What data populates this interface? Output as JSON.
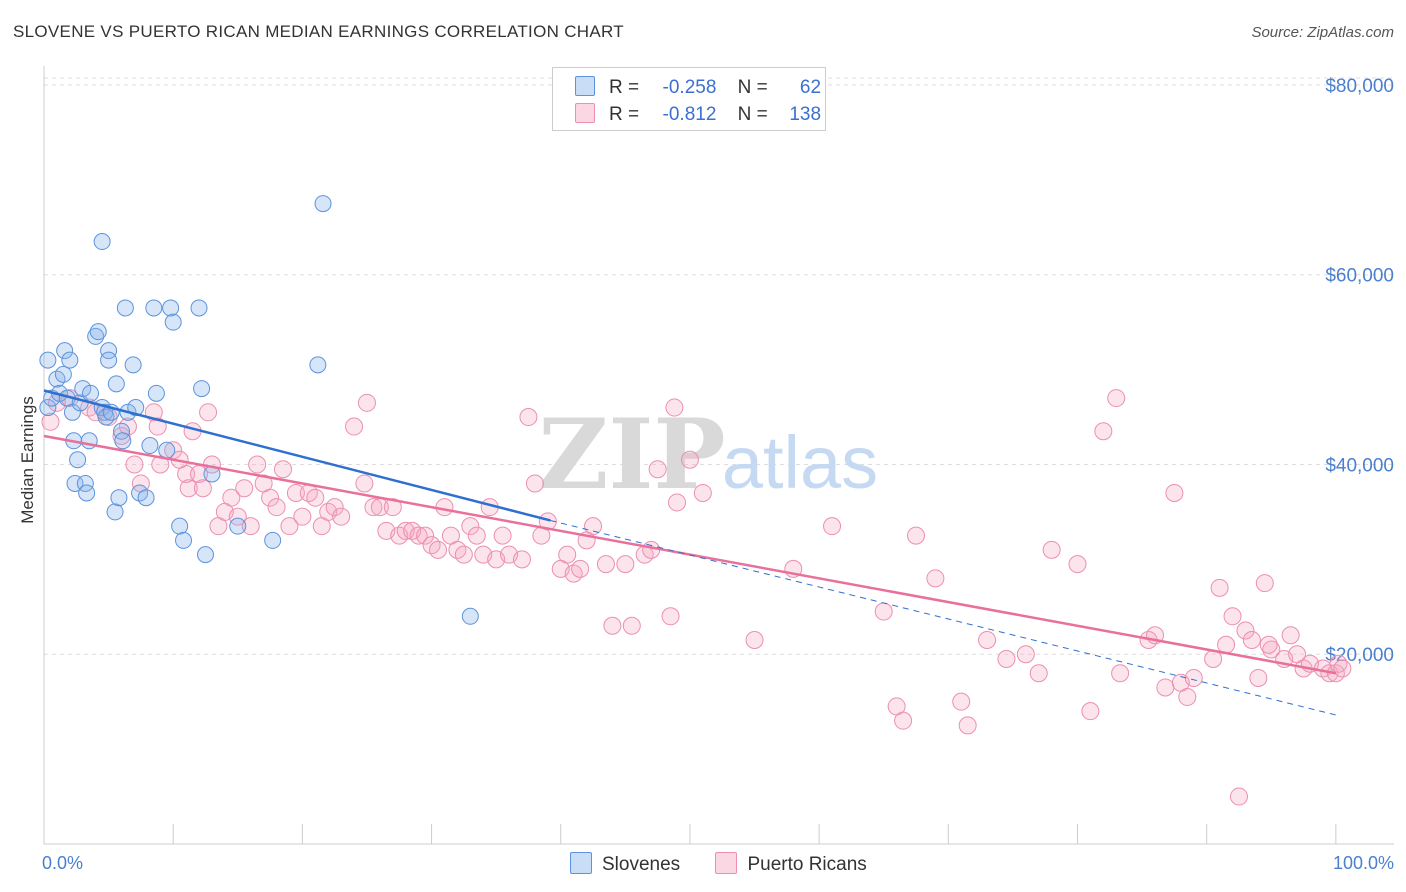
{
  "header": {
    "title": "SLOVENE VS PUERTO RICAN MEDIAN EARNINGS CORRELATION CHART",
    "source": "Source: ZipAtlas.com"
  },
  "watermark": {
    "zip": "ZIP",
    "atlas": "atlas"
  },
  "legend": {
    "rows": [
      {
        "r_label": "R =",
        "r_value": "-0.258",
        "n_label": "N =",
        "n_value": "62",
        "color": "#8ab4ea"
      },
      {
        "r_label": "R =",
        "r_value": "-0.812",
        "n_label": "N =",
        "n_value": "138",
        "color": "#f4a6bf"
      }
    ]
  },
  "bottom_legend": [
    {
      "label": "Slovenes",
      "color": "#8ab4ea"
    },
    {
      "label": "Puerto Ricans",
      "color": "#f4a6bf"
    }
  ],
  "colors": {
    "blue_fill": "rgba(138,180,234,0.35)",
    "blue_stroke": "#5d93dc",
    "blue_line": "#2f6fd0",
    "pink_fill": "rgba(244,166,191,0.3)",
    "pink_stroke": "#ec8fb0",
    "pink_line": "#e8709a",
    "grid": "#dddddd",
    "tick_text": "#4a7fd0"
  },
  "chart_data": {
    "type": "scatter",
    "title": "SLOVENE VS PUERTO RICAN MEDIAN EARNINGS CORRELATION CHART",
    "xlabel": "",
    "ylabel": "Median Earnings",
    "xlim": [
      0,
      104.5
    ],
    "ylim": [
      0,
      82000
    ],
    "x_tick_labels": [
      "0.0%",
      "100.0%"
    ],
    "y_ticks": [
      20000,
      40000,
      60000,
      80000
    ],
    "y_tick_labels": [
      "$20,000",
      "$40,000",
      "$60,000",
      "$80,000"
    ],
    "grid": true,
    "legend_position": "top-center",
    "series": [
      {
        "name": "Slovenes",
        "r": -0.258,
        "n": 62,
        "trend": {
          "x0": 0,
          "y0": 47800,
          "x1": 39.2,
          "y1": 34100
        },
        "points": [
          [
            0.3,
            51000
          ],
          [
            0.3,
            46000
          ],
          [
            0.6,
            47000
          ],
          [
            1.0,
            49000
          ],
          [
            1.2,
            47500
          ],
          [
            1.5,
            49500
          ],
          [
            1.6,
            52000
          ],
          [
            1.8,
            47000
          ],
          [
            2.0,
            51000
          ],
          [
            2.2,
            45500
          ],
          [
            2.3,
            42500
          ],
          [
            2.4,
            38000
          ],
          [
            2.6,
            40500
          ],
          [
            2.8,
            46500
          ],
          [
            3.0,
            48000
          ],
          [
            3.2,
            38000
          ],
          [
            3.3,
            37000
          ],
          [
            3.5,
            42500
          ],
          [
            3.6,
            47500
          ],
          [
            4.0,
            53500
          ],
          [
            4.2,
            54000
          ],
          [
            4.5,
            46000
          ],
          [
            4.7,
            45500
          ],
          [
            4.5,
            63500
          ],
          [
            4.8,
            45000
          ],
          [
            5.0,
            52000
          ],
          [
            5.0,
            51000
          ],
          [
            5.2,
            45500
          ],
          [
            5.5,
            35000
          ],
          [
            5.6,
            48500
          ],
          [
            5.8,
            36500
          ],
          [
            6.0,
            43500
          ],
          [
            6.1,
            42500
          ],
          [
            6.3,
            56500
          ],
          [
            6.5,
            45500
          ],
          [
            6.9,
            50500
          ],
          [
            7.1,
            46000
          ],
          [
            7.4,
            37000
          ],
          [
            7.9,
            36500
          ],
          [
            8.2,
            42000
          ],
          [
            8.5,
            56500
          ],
          [
            8.7,
            47500
          ],
          [
            9.5,
            41500
          ],
          [
            9.8,
            56500
          ],
          [
            10.0,
            55000
          ],
          [
            10.5,
            33500
          ],
          [
            10.8,
            32000
          ],
          [
            12.0,
            56500
          ],
          [
            12.2,
            48000
          ],
          [
            12.5,
            30500
          ],
          [
            13.0,
            39000
          ],
          [
            15.0,
            33500
          ],
          [
            17.7,
            32000
          ],
          [
            21.2,
            50500
          ],
          [
            21.6,
            67500
          ],
          [
            33.0,
            24000
          ]
        ]
      },
      {
        "name": "Puerto Ricans",
        "r": -0.812,
        "n": 138,
        "trend": {
          "x0": 0,
          "y0": 43000,
          "x1": 100,
          "y1": 18000
        },
        "points": [
          [
            0.5,
            44500
          ],
          [
            1.0,
            46500
          ],
          [
            2.0,
            47000
          ],
          [
            3.5,
            46000
          ],
          [
            4.0,
            45500
          ],
          [
            5.0,
            45000
          ],
          [
            6.0,
            43000
          ],
          [
            6.5,
            44000
          ],
          [
            7.0,
            40000
          ],
          [
            7.5,
            38000
          ],
          [
            8.5,
            45500
          ],
          [
            8.8,
            44000
          ],
          [
            9.0,
            40000
          ],
          [
            10.0,
            41500
          ],
          [
            10.5,
            40500
          ],
          [
            11.0,
            39000
          ],
          [
            11.2,
            37500
          ],
          [
            11.5,
            43500
          ],
          [
            12.0,
            39000
          ],
          [
            12.3,
            37500
          ],
          [
            12.7,
            45500
          ],
          [
            13.0,
            40000
          ],
          [
            13.5,
            33500
          ],
          [
            14.0,
            35000
          ],
          [
            14.5,
            36500
          ],
          [
            15.0,
            34500
          ],
          [
            15.5,
            37500
          ],
          [
            16.0,
            33500
          ],
          [
            16.5,
            40000
          ],
          [
            17.0,
            38000
          ],
          [
            17.5,
            36500
          ],
          [
            18.0,
            35500
          ],
          [
            18.5,
            39500
          ],
          [
            19.0,
            33500
          ],
          [
            19.5,
            37000
          ],
          [
            20.0,
            34500
          ],
          [
            20.5,
            37000
          ],
          [
            21.0,
            36500
          ],
          [
            21.5,
            33500
          ],
          [
            22.0,
            35000
          ],
          [
            22.5,
            35500
          ],
          [
            23.0,
            34500
          ],
          [
            24.0,
            44000
          ],
          [
            24.8,
            38000
          ],
          [
            25.0,
            46500
          ],
          [
            25.5,
            35500
          ],
          [
            26.0,
            35500
          ],
          [
            26.5,
            33000
          ],
          [
            27.0,
            35500
          ],
          [
            27.5,
            32500
          ],
          [
            28.0,
            33000
          ],
          [
            28.5,
            33000
          ],
          [
            29.0,
            32500
          ],
          [
            29.5,
            32500
          ],
          [
            30.0,
            31500
          ],
          [
            30.5,
            31000
          ],
          [
            31.0,
            35500
          ],
          [
            31.5,
            32500
          ],
          [
            32.0,
            31000
          ],
          [
            32.5,
            30500
          ],
          [
            33.0,
            33500
          ],
          [
            33.5,
            32500
          ],
          [
            34.0,
            30500
          ],
          [
            34.5,
            35500
          ],
          [
            35.0,
            30000
          ],
          [
            35.5,
            32500
          ],
          [
            36.0,
            30500
          ],
          [
            37.0,
            30000
          ],
          [
            37.5,
            45000
          ],
          [
            38.0,
            38000
          ],
          [
            38.5,
            32500
          ],
          [
            39.0,
            34000
          ],
          [
            40.0,
            29000
          ],
          [
            40.5,
            30500
          ],
          [
            41.0,
            28500
          ],
          [
            41.5,
            29000
          ],
          [
            42.0,
            32000
          ],
          [
            42.5,
            33500
          ],
          [
            43.5,
            29500
          ],
          [
            44.0,
            23000
          ],
          [
            45.0,
            29500
          ],
          [
            45.5,
            23000
          ],
          [
            46.5,
            30500
          ],
          [
            47.0,
            31000
          ],
          [
            47.5,
            39500
          ],
          [
            48.5,
            24000
          ],
          [
            48.8,
            46000
          ],
          [
            49.0,
            36000
          ],
          [
            50.0,
            40500
          ],
          [
            51.0,
            37000
          ],
          [
            55.0,
            21500
          ],
          [
            58.0,
            29000
          ],
          [
            61.0,
            33500
          ],
          [
            65.0,
            24500
          ],
          [
            66.0,
            14500
          ],
          [
            66.5,
            13000
          ],
          [
            67.5,
            32500
          ],
          [
            69.0,
            28000
          ],
          [
            71.0,
            15000
          ],
          [
            71.5,
            12500
          ],
          [
            73.0,
            21500
          ],
          [
            74.5,
            19500
          ],
          [
            76.0,
            20000
          ],
          [
            78.0,
            31000
          ],
          [
            80.0,
            29500
          ],
          [
            81.0,
            14000
          ],
          [
            82.0,
            43500
          ],
          [
            83.0,
            47000
          ],
          [
            83.3,
            18000
          ],
          [
            85.5,
            21500
          ],
          [
            86.0,
            22000
          ],
          [
            86.8,
            16500
          ],
          [
            87.5,
            37000
          ],
          [
            88.0,
            17000
          ],
          [
            88.5,
            15500
          ],
          [
            89.0,
            17500
          ],
          [
            90.5,
            19500
          ],
          [
            91.0,
            27000
          ],
          [
            91.5,
            21000
          ],
          [
            92.0,
            24000
          ],
          [
            92.5,
            5000
          ],
          [
            93.0,
            22500
          ],
          [
            93.5,
            21500
          ],
          [
            94.0,
            17500
          ],
          [
            94.5,
            27500
          ],
          [
            95.0,
            20500
          ],
          [
            96.0,
            19500
          ],
          [
            97.0,
            20000
          ],
          [
            97.5,
            18500
          ],
          [
            98.0,
            19000
          ],
          [
            99.0,
            18500
          ],
          [
            99.5,
            18000
          ],
          [
            100.0,
            18000
          ],
          [
            100.2,
            19000
          ],
          [
            100.5,
            18500
          ],
          [
            96.5,
            22000
          ],
          [
            94.8,
            21000
          ],
          [
            77.0,
            18000
          ]
        ]
      },
      {
        "name": "Slovenes projection",
        "trend_dashed": {
          "x0": 39.2,
          "y0": 34100,
          "x1": 100,
          "y1": 13600
        }
      }
    ]
  }
}
